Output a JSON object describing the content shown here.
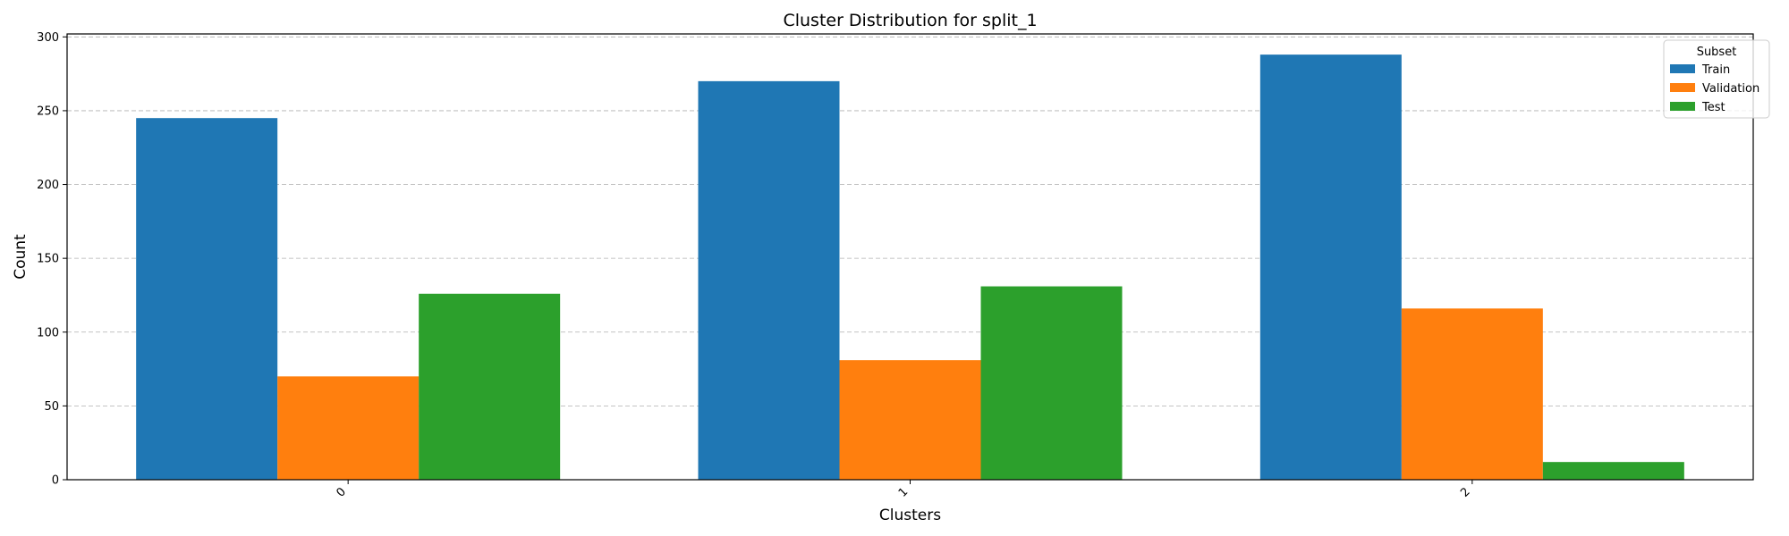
{
  "chart_data": {
    "type": "bar",
    "title": "Cluster Distribution for split_1",
    "xlabel": "Clusters",
    "ylabel": "Count",
    "categories": [
      "0",
      "1",
      "2"
    ],
    "series": [
      {
        "name": "Train",
        "color": "#1f77b4",
        "values": [
          245,
          270,
          288
        ]
      },
      {
        "name": "Validation",
        "color": "#ff7f0e",
        "values": [
          70,
          81,
          116
        ]
      },
      {
        "name": "Test",
        "color": "#2ca02c",
        "values": [
          126,
          131,
          12
        ]
      }
    ],
    "ylim": [
      0,
      302
    ],
    "yticks": [
      0,
      50,
      100,
      150,
      200,
      250,
      300
    ],
    "grid": "y-dashed",
    "legend": {
      "title": "Subset",
      "position": "top-right"
    }
  }
}
